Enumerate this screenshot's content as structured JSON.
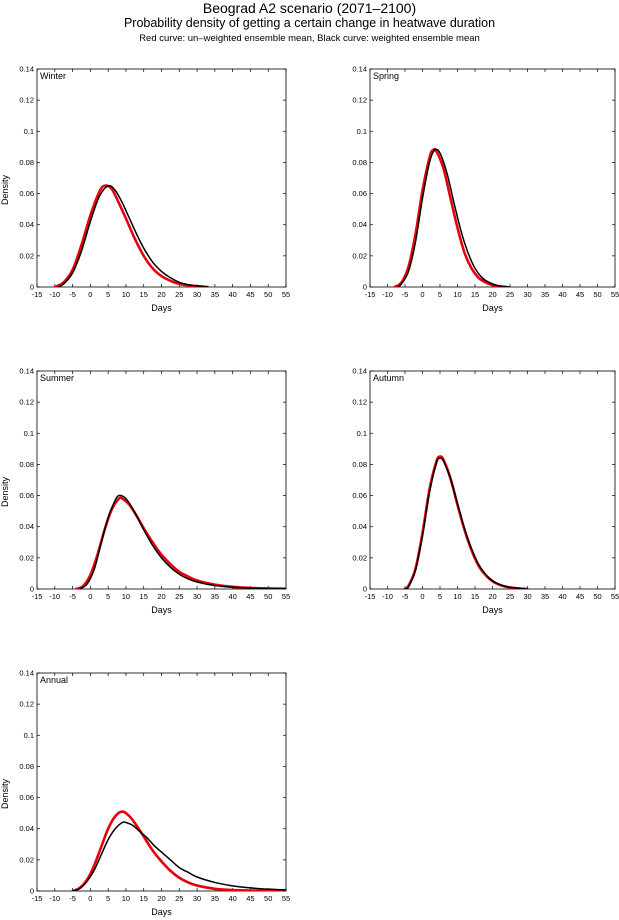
{
  "figure": {
    "title": "Beograd A2 scenario (2071–2100)",
    "subtitle": "Probability density of getting a certain change in heatwave duration",
    "caption": "Red curve: un–weighted ensemble mean, Black curve: weighted ensemble mean",
    "colors": {
      "unweighted": "#e8000b",
      "weighted": "#000000"
    }
  },
  "chart_data": [
    {
      "type": "line",
      "panel_label": "Winter",
      "xlabel": "Days",
      "ylabel": "Density",
      "xlim": [
        -15,
        55
      ],
      "ylim": [
        0,
        0.14
      ],
      "xticks": [
        -15,
        -10,
        -5,
        0,
        5,
        10,
        15,
        20,
        25,
        30,
        35,
        40,
        45,
        50,
        55
      ],
      "yticks": [
        0,
        0.02,
        0.04,
        0.06,
        0.08,
        0.1,
        0.12,
        0.14
      ],
      "series": [
        {
          "color": "#e8000b",
          "x": [
            -10,
            -7.5,
            -5,
            -2.5,
            0,
            2.5,
            4,
            6,
            8,
            10,
            12.5,
            15,
            17.5,
            20,
            22.5,
            25,
            27.5,
            30,
            33
          ],
          "y": [
            0.0,
            0.003,
            0.011,
            0.027,
            0.046,
            0.061,
            0.065,
            0.063,
            0.054,
            0.044,
            0.031,
            0.02,
            0.012,
            0.007,
            0.004,
            0.002,
            0.001,
            0.0005,
            0.0
          ]
        },
        {
          "color": "#000000",
          "x": [
            -9,
            -7.5,
            -5,
            -2.5,
            0,
            2.5,
            5,
            7,
            9,
            11,
            13,
            15,
            17.5,
            20,
            22.5,
            25,
            27.5,
            30,
            33
          ],
          "y": [
            0.0,
            0.002,
            0.009,
            0.023,
            0.042,
            0.058,
            0.065,
            0.062,
            0.054,
            0.044,
            0.034,
            0.025,
            0.016,
            0.01,
            0.006,
            0.003,
            0.0015,
            0.0007,
            0.0
          ]
        }
      ]
    },
    {
      "type": "line",
      "panel_label": "Spring",
      "xlabel": "Days",
      "ylabel": "",
      "xlim": [
        -15,
        55
      ],
      "ylim": [
        0,
        0.14
      ],
      "xticks": [
        -15,
        -10,
        -5,
        0,
        5,
        10,
        15,
        20,
        25,
        30,
        35,
        40,
        45,
        50,
        55
      ],
      "yticks": [
        0,
        0.02,
        0.04,
        0.06,
        0.08,
        0.1,
        0.12,
        0.14
      ],
      "series": [
        {
          "color": "#e8000b",
          "x": [
            -8,
            -6,
            -4,
            -2,
            0,
            2,
            3,
            4,
            6,
            8,
            10,
            12,
            14,
            16,
            18,
            20,
            22,
            24
          ],
          "y": [
            0.0,
            0.003,
            0.013,
            0.034,
            0.062,
            0.083,
            0.088,
            0.087,
            0.076,
            0.057,
            0.038,
            0.022,
            0.012,
            0.006,
            0.003,
            0.0012,
            0.0004,
            0.0
          ]
        },
        {
          "color": "#000000",
          "x": [
            -7,
            -6,
            -4,
            -2,
            0,
            2,
            3.5,
            5,
            7,
            9,
            11,
            13,
            15,
            17,
            19,
            21,
            23,
            25
          ],
          "y": [
            0.0,
            0.002,
            0.01,
            0.029,
            0.057,
            0.08,
            0.088,
            0.086,
            0.073,
            0.054,
            0.036,
            0.022,
            0.012,
            0.006,
            0.003,
            0.0012,
            0.0004,
            0.0
          ]
        }
      ]
    },
    {
      "type": "line",
      "panel_label": "Summer",
      "xlabel": "Days",
      "ylabel": "Density",
      "xlim": [
        -15,
        55
      ],
      "ylim": [
        0,
        0.14
      ],
      "xticks": [
        -15,
        -10,
        -5,
        0,
        5,
        10,
        15,
        20,
        25,
        30,
        35,
        40,
        45,
        50,
        55
      ],
      "yticks": [
        0,
        0.02,
        0.04,
        0.06,
        0.08,
        0.1,
        0.12,
        0.14
      ],
      "series": [
        {
          "color": "#e8000b",
          "x": [
            -4,
            -2,
            0,
            2,
            4,
            6,
            8,
            9,
            11,
            13,
            15,
            17.5,
            20,
            22.5,
            25,
            27.5,
            30,
            35,
            40,
            45,
            50,
            55
          ],
          "y": [
            0.0,
            0.002,
            0.009,
            0.022,
            0.038,
            0.051,
            0.058,
            0.058,
            0.054,
            0.047,
            0.039,
            0.03,
            0.022,
            0.016,
            0.011,
            0.008,
            0.0055,
            0.0028,
            0.0014,
            0.0007,
            0.0004,
            0.0002
          ]
        },
        {
          "color": "#000000",
          "x": [
            -3,
            -1,
            1,
            3,
            5,
            7,
            8,
            9.5,
            11,
            13,
            15,
            17.5,
            20,
            22.5,
            25,
            27.5,
            30,
            35,
            40,
            45,
            50,
            55
          ],
          "y": [
            0.0,
            0.003,
            0.012,
            0.029,
            0.046,
            0.057,
            0.06,
            0.059,
            0.055,
            0.047,
            0.038,
            0.028,
            0.02,
            0.014,
            0.0095,
            0.0065,
            0.0045,
            0.0022,
            0.0011,
            0.0005,
            0.0002,
            0.0001
          ]
        }
      ]
    },
    {
      "type": "line",
      "panel_label": "Autumn",
      "xlabel": "Days",
      "ylabel": "",
      "xlim": [
        -15,
        55
      ],
      "ylim": [
        0,
        0.14
      ],
      "xticks": [
        -15,
        -10,
        -5,
        0,
        5,
        10,
        15,
        20,
        25,
        30,
        35,
        40,
        45,
        50,
        55
      ],
      "yticks": [
        0,
        0.02,
        0.04,
        0.06,
        0.08,
        0.1,
        0.12,
        0.14
      ],
      "series": [
        {
          "color": "#e8000b",
          "x": [
            -5,
            -4,
            -2,
            0,
            2,
            4,
            5,
            6,
            8,
            10,
            12,
            14,
            16,
            18,
            20,
            22,
            24,
            26,
            28,
            30
          ],
          "y": [
            0.0,
            0.002,
            0.013,
            0.036,
            0.064,
            0.082,
            0.085,
            0.083,
            0.071,
            0.054,
            0.038,
            0.025,
            0.015,
            0.009,
            0.005,
            0.0027,
            0.0014,
            0.0007,
            0.0003,
            0.0
          ]
        },
        {
          "color": "#000000",
          "x": [
            -5,
            -4,
            -2,
            0,
            2,
            4,
            5,
            6,
            8,
            10,
            12,
            14,
            16,
            18,
            20,
            22,
            24,
            26,
            28,
            30
          ],
          "y": [
            0.0,
            0.0015,
            0.012,
            0.034,
            0.062,
            0.081,
            0.084,
            0.082,
            0.071,
            0.055,
            0.039,
            0.026,
            0.016,
            0.0095,
            0.0053,
            0.0029,
            0.0015,
            0.0008,
            0.0003,
            0.0
          ]
        }
      ]
    },
    {
      "type": "line",
      "panel_label": "Annual",
      "xlabel": "Days",
      "ylabel": "Density",
      "xlim": [
        -15,
        55
      ],
      "ylim": [
        0,
        0.14
      ],
      "xticks": [
        -15,
        -10,
        -5,
        0,
        5,
        10,
        15,
        20,
        25,
        30,
        35,
        40,
        45,
        50,
        55
      ],
      "yticks": [
        0,
        0.02,
        0.04,
        0.06,
        0.08,
        0.1,
        0.12,
        0.14
      ],
      "series": [
        {
          "color": "#e8000b",
          "x": [
            -5,
            -3,
            -1,
            1,
            3,
            5,
            7,
            9,
            11,
            13,
            15,
            17.5,
            20,
            22.5,
            25,
            27.5,
            30,
            35,
            40,
            45,
            50,
            55
          ],
          "y": [
            0.0,
            0.002,
            0.007,
            0.016,
            0.028,
            0.04,
            0.048,
            0.051,
            0.048,
            0.042,
            0.035,
            0.026,
            0.019,
            0.013,
            0.0085,
            0.0055,
            0.0035,
            0.0014,
            0.0006,
            0.0003,
            0.0001,
            0.0
          ]
        },
        {
          "color": "#000000",
          "x": [
            -5,
            -3,
            -1,
            1,
            3,
            5,
            7,
            9,
            10,
            12,
            14,
            16,
            18,
            20,
            22.5,
            25,
            27.5,
            30,
            35,
            40,
            45,
            50,
            55
          ],
          "y": [
            0.0,
            0.0015,
            0.006,
            0.013,
            0.023,
            0.033,
            0.04,
            0.044,
            0.044,
            0.042,
            0.038,
            0.034,
            0.029,
            0.025,
            0.02,
            0.015,
            0.012,
            0.009,
            0.0055,
            0.0033,
            0.002,
            0.0012,
            0.0007
          ]
        }
      ]
    }
  ]
}
